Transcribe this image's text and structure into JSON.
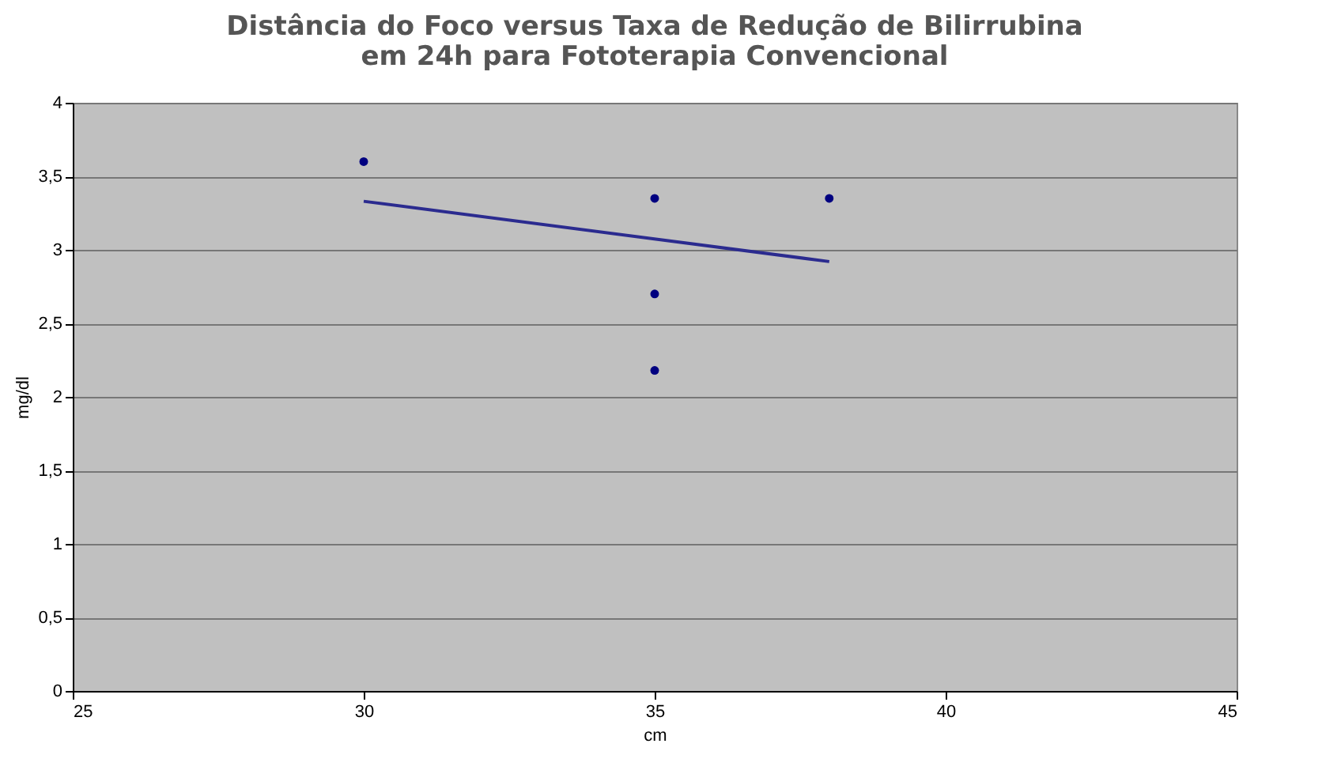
{
  "chart_data": {
    "type": "scatter",
    "title": "Distância do Foco versus Taxa de Redução de Bilirrubina em 24h para Fototerapia Convencional",
    "xlabel": "cm",
    "ylabel": "mg/dl",
    "series": [
      {
        "marker": "circle",
        "color": "#000080",
        "x": [
          30,
          35,
          35,
          35,
          38
        ],
        "values": [
          3.6,
          3.35,
          2.7,
          2.18,
          3.35
        ]
      },
      {
        "type": "line",
        "color": "#2b2b8f",
        "x": [
          30,
          38
        ],
        "values": [
          3.33,
          2.92
        ]
      }
    ],
    "xlim": [
      25,
      45
    ],
    "xticks": [
      25,
      30,
      35,
      40,
      45
    ],
    "ylim": [
      0,
      4
    ],
    "yticks": [
      0,
      {
        "value": 0.5,
        "label": "0,5"
      },
      1,
      {
        "value": 1.5,
        "label": "1,5"
      },
      2,
      {
        "value": 2.5,
        "label": "2,5"
      },
      3,
      {
        "value": 3.5,
        "label": "3,5"
      },
      4
    ],
    "grid": "y"
  }
}
